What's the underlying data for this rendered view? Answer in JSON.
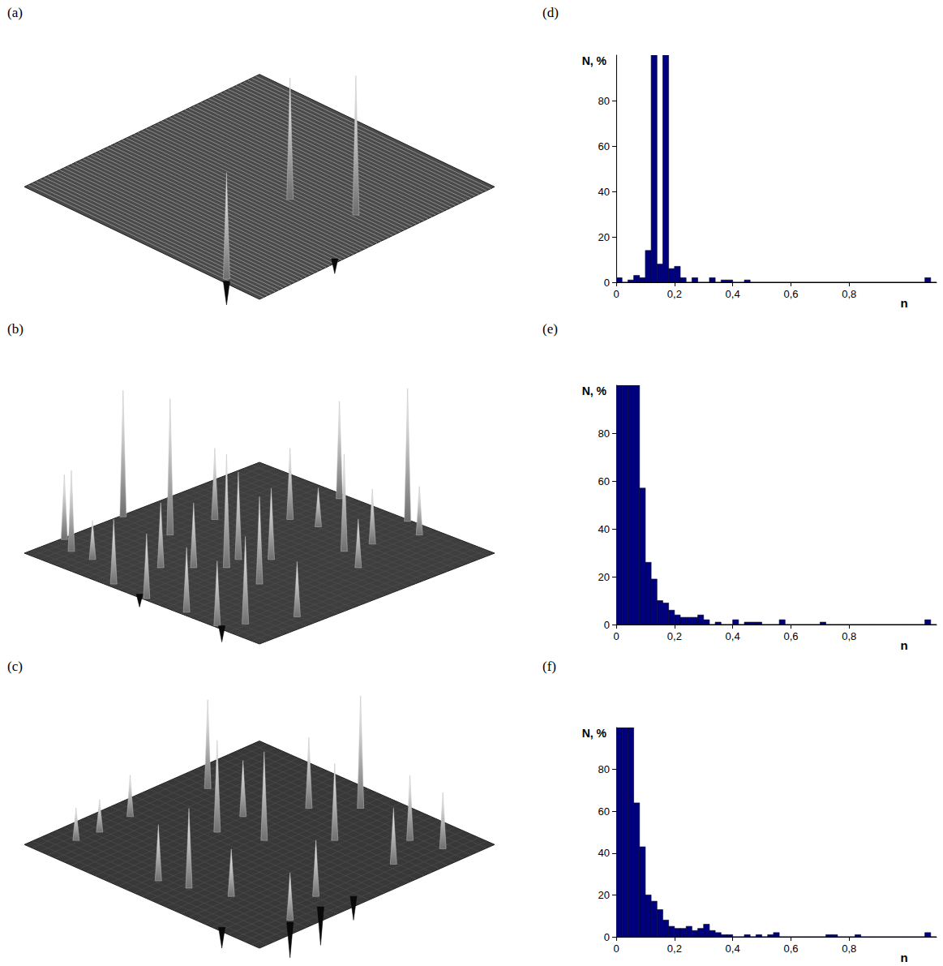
{
  "chart_data": [
    {
      "type": "surface",
      "panel": "(a)",
      "tick_labels": false,
      "peaks": [
        [
          0.02,
          0.84,
          0.36
        ],
        [
          0.51,
          0.62,
          0.41
        ],
        [
          0.58,
          0.83,
          0.47
        ],
        [
          0.01,
          0.85,
          -0.08
        ],
        [
          0.34,
          0.98,
          -0.05
        ]
      ]
    },
    {
      "type": "surface",
      "panel": "(b)",
      "tick_labels": false,
      "peaks": [
        [
          0.16,
          0.01,
          0.2
        ],
        [
          0.11,
          0.09,
          0.25
        ],
        [
          0.41,
          0.01,
          0.39
        ],
        [
          0.41,
          0.21,
          0.42
        ],
        [
          0.28,
          0.44,
          0.2
        ],
        [
          0.59,
          0.22,
          0.22
        ],
        [
          0.35,
          0.51,
          0.35
        ],
        [
          0.42,
          0.49,
          0.27
        ],
        [
          0.33,
          0.67,
          0.27
        ],
        [
          0.49,
          0.56,
          0.22
        ],
        [
          0.75,
          0.38,
          0.22
        ],
        [
          0.77,
          0.48,
          0.12
        ],
        [
          0.97,
          0.37,
          0.3
        ],
        [
          0.69,
          0.67,
          0.3
        ],
        [
          0.79,
          0.69,
          0.17
        ],
        [
          0.99,
          0.64,
          0.41
        ],
        [
          0.94,
          0.74,
          0.15
        ],
        [
          0.02,
          0.36,
          0.2
        ],
        [
          0.01,
          0.51,
          0.2
        ],
        [
          0.21,
          0.37,
          0.2
        ],
        [
          0.02,
          0.67,
          0.2
        ],
        [
          0.01,
          0.81,
          0.2
        ],
        [
          0.08,
          0.86,
          0.27
        ],
        [
          0.23,
          0.93,
          0.17
        ],
        [
          0.11,
          0.18,
          0.12
        ],
        [
          0.63,
          0.79,
          0.15
        ],
        [
          0.02,
          0.82,
          -0.05
        ],
        [
          0.02,
          0.47,
          -0.04
        ]
      ]
    },
    {
      "type": "surface",
      "panel": "(c)",
      "tick_labels": false,
      "peaks": [
        [
          0.13,
          0.09,
          0.11
        ],
        [
          0.22,
          0.1,
          0.11
        ],
        [
          0.36,
          0.09,
          0.14
        ],
        [
          0.66,
          0.12,
          0.3
        ],
        [
          0.47,
          0.35,
          0.31
        ],
        [
          0.6,
          0.33,
          0.19
        ],
        [
          0.53,
          0.49,
          0.3
        ],
        [
          0.78,
          0.43,
          0.24
        ],
        [
          0.68,
          0.64,
          0.26
        ],
        [
          0.89,
          0.54,
          0.38
        ],
        [
          0.69,
          0.88,
          0.19
        ],
        [
          0.84,
          0.8,
          0.22
        ],
        [
          0.87,
          0.91,
          0.19
        ],
        [
          0.11,
          0.46,
          0.19
        ],
        [
          0.14,
          0.56,
          0.27
        ],
        [
          0.19,
          0.69,
          0.16
        ],
        [
          0.2,
          0.93,
          0.16
        ],
        [
          0.37,
          0.87,
          0.19
        ],
        [
          0.19,
          0.94,
          -0.12
        ],
        [
          0.33,
          0.93,
          -0.13
        ],
        [
          0.02,
          0.82,
          -0.07
        ],
        [
          0.45,
          0.95,
          -0.08
        ]
      ]
    },
    {
      "type": "histogram",
      "panel": "(d)",
      "xlabel": "n",
      "ylabel": "N, %",
      "color": "#00007f",
      "bins": [
        0,
        0.02,
        0.04,
        0.06,
        0.08,
        0.1,
        0.12,
        0.14,
        0.16,
        0.18,
        0.2,
        0.22,
        0.24,
        0.26,
        0.28,
        0.3,
        0.32,
        0.34,
        0.36,
        0.38,
        0.4,
        0.42,
        0.44,
        0.46,
        0.48,
        0.5,
        0.52,
        0.54,
        0.56,
        0.58,
        0.6,
        0.62,
        0.64,
        0.66,
        0.68,
        0.7,
        0.72,
        0.74,
        0.76,
        0.78,
        0.8,
        0.82,
        0.84,
        0.86,
        0.88,
        0.9,
        0.92,
        0.94,
        0.96,
        0.98,
        1,
        1.02,
        1.04,
        1.06,
        1.08,
        1.1
      ],
      "counts": [
        2,
        0,
        1,
        3,
        2,
        14,
        100,
        8,
        100,
        6,
        7,
        2,
        0,
        2,
        0,
        0,
        2,
        0,
        1,
        1,
        0,
        0,
        1,
        0,
        0,
        0,
        0,
        0,
        0,
        0,
        0,
        0,
        0,
        0,
        0,
        0,
        0,
        0,
        0,
        0,
        0,
        0,
        0,
        0,
        0,
        0,
        0,
        0,
        0,
        0,
        0,
        0,
        0,
        2,
        0
      ],
      "xlim": [
        0,
        1.1
      ],
      "ylim": [
        0,
        100
      ],
      "xticks": [
        0,
        {
          "value": 0.2,
          "label": "0,2"
        },
        {
          "value": 0.4,
          "label": "0,4"
        },
        {
          "value": 0.6,
          "label": "0,6"
        },
        {
          "value": 0.8,
          "label": "0,8"
        }
      ],
      "yticks": [
        0,
        20,
        40,
        60,
        80
      ]
    },
    {
      "type": "histogram",
      "panel": "(e)",
      "xlabel": "n",
      "ylabel": "N, %",
      "color": "#00007f",
      "bins": [
        0,
        0.02,
        0.04,
        0.06,
        0.08,
        0.1,
        0.12,
        0.14,
        0.16,
        0.18,
        0.2,
        0.22,
        0.24,
        0.26,
        0.28,
        0.3,
        0.32,
        0.34,
        0.36,
        0.38,
        0.4,
        0.42,
        0.44,
        0.46,
        0.48,
        0.5,
        0.52,
        0.54,
        0.56,
        0.58,
        0.6,
        0.62,
        0.64,
        0.66,
        0.68,
        0.7,
        0.72,
        0.74,
        0.76,
        0.78,
        0.8,
        0.82,
        0.84,
        0.86,
        0.88,
        0.9,
        0.92,
        0.94,
        0.96,
        0.98,
        1,
        1.02,
        1.04,
        1.06,
        1.08,
        1.1
      ],
      "counts": [
        100,
        100,
        100,
        100,
        57,
        26,
        19,
        10,
        9,
        6,
        4,
        3,
        3,
        3,
        4,
        2,
        0,
        1,
        0,
        0,
        2,
        0,
        1,
        1,
        1,
        0,
        0,
        0,
        2,
        0,
        0,
        0,
        0,
        0,
        0,
        1,
        0,
        0,
        0,
        0,
        0,
        0,
        0,
        0,
        0,
        0,
        0,
        0,
        0,
        0,
        0,
        0,
        0,
        2,
        0
      ],
      "xlim": [
        0,
        1.1
      ],
      "ylim": [
        0,
        100
      ],
      "xticks": [
        0,
        {
          "value": 0.2,
          "label": "0,2"
        },
        {
          "value": 0.4,
          "label": "0,4"
        },
        {
          "value": 0.6,
          "label": "0,6"
        },
        {
          "value": 0.8,
          "label": "0,8"
        }
      ],
      "yticks": [
        0,
        20,
        40,
        60,
        80
      ]
    },
    {
      "type": "histogram",
      "panel": "(f)",
      "xlabel": "n",
      "ylabel": "N, %",
      "color": "#00007f",
      "bins": [
        0,
        0.02,
        0.04,
        0.06,
        0.08,
        0.1,
        0.12,
        0.14,
        0.16,
        0.18,
        0.2,
        0.22,
        0.24,
        0.26,
        0.28,
        0.3,
        0.32,
        0.34,
        0.36,
        0.38,
        0.4,
        0.42,
        0.44,
        0.46,
        0.48,
        0.5,
        0.52,
        0.54,
        0.56,
        0.58,
        0.6,
        0.62,
        0.64,
        0.66,
        0.68,
        0.7,
        0.72,
        0.74,
        0.76,
        0.78,
        0.8,
        0.82,
        0.84,
        0.86,
        0.88,
        0.9,
        0.92,
        0.94,
        0.96,
        0.98,
        1,
        1.02,
        1.04,
        1.06,
        1.08,
        1.1
      ],
      "counts": [
        100,
        100,
        100,
        64,
        43,
        20,
        17,
        13,
        8,
        5,
        4,
        4,
        5,
        3,
        4,
        6,
        3,
        2,
        1,
        1,
        0,
        0,
        1,
        0,
        1,
        0,
        1,
        2,
        0,
        0,
        0,
        0,
        0,
        0,
        0,
        0,
        1,
        1,
        0,
        0,
        0,
        1,
        0,
        0,
        0,
        0,
        0,
        0,
        0,
        0,
        0,
        0,
        0,
        2,
        0
      ],
      "xlim": [
        0,
        1.1
      ],
      "ylim": [
        0,
        100
      ],
      "xticks": [
        0,
        {
          "value": 0.2,
          "label": "0,2"
        },
        {
          "value": 0.4,
          "label": "0,4"
        },
        {
          "value": 0.6,
          "label": "0,6"
        },
        {
          "value": 0.8,
          "label": "0,8"
        }
      ],
      "yticks": [
        0,
        20,
        40,
        60,
        80
      ]
    }
  ]
}
